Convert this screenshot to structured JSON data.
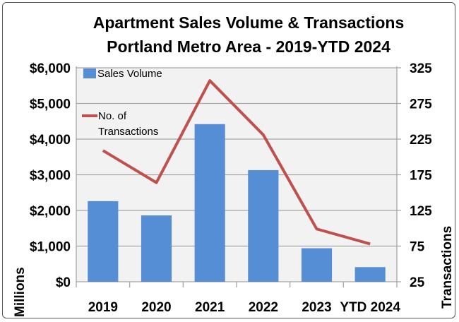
{
  "chart_data": {
    "type": "bar+line",
    "title": "Apartment Sales Volume & Transactions",
    "subtitle": "Portland Metro Area - 2019-YTD 2024",
    "categories": [
      "2019",
      "2020",
      "2021",
      "2022",
      "2023",
      "YTD 2024"
    ],
    "series": [
      {
        "name": "Sales Volume",
        "type": "bar",
        "axis": "left",
        "color": "#558ED5",
        "values": [
          2260,
          1860,
          4420,
          3130,
          940,
          410
        ]
      },
      {
        "name": "No. of Transactions",
        "type": "line",
        "axis": "right",
        "color": "#C0504D",
        "values": [
          209,
          164,
          307,
          231,
          99,
          78
        ]
      }
    ],
    "ylabel": "Millions",
    "y2label": "Transactions",
    "ylim": [
      0,
      6000
    ],
    "y2lim": [
      25,
      325
    ],
    "yticks": [
      "$0",
      "$1,000",
      "$2,000",
      "$3,000",
      "$4,000",
      "$5,000",
      "$6,000"
    ],
    "y2ticks": [
      "25",
      "75",
      "125",
      "175",
      "225",
      "275",
      "325"
    ],
    "legend_labels": [
      "Sales Volume",
      "No. of",
      "Transactions"
    ],
    "grid": true,
    "legend_placement": "top-left",
    "plot_background": "#F2F2F2"
  }
}
